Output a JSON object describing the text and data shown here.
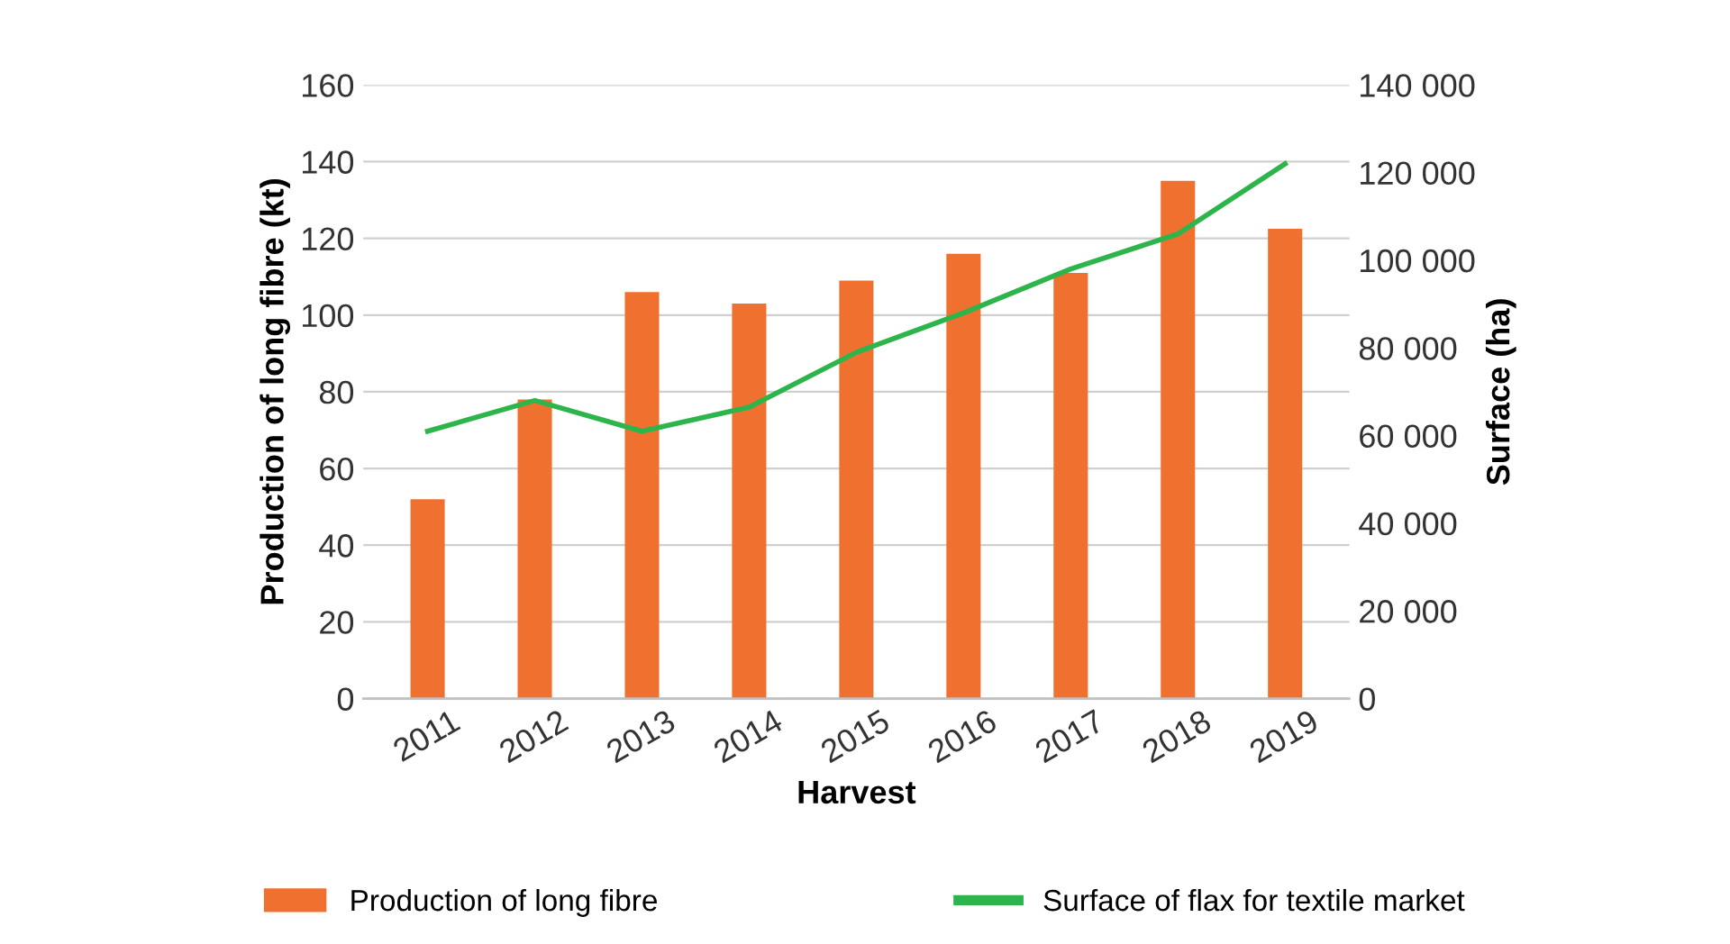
{
  "chart_data": {
    "type": "bar",
    "xlabel": "Harvest",
    "ylabel": "Production of long fibre (kt)",
    "y2label": "Surface (ha)",
    "categories": [
      "2011",
      "2012",
      "2013",
      "2014",
      "2015",
      "2016",
      "2017",
      "2018",
      "2019"
    ],
    "series": [
      {
        "name": "Production of long fibre",
        "color": "#f07030",
        "values": [
          52,
          78,
          106,
          103,
          109,
          116,
          111,
          135,
          122.5
        ]
      },
      {
        "name": "Surface of flax for textile market",
        "type": "line",
        "axis": "y2",
        "color": "#2db44a",
        "values": [
          61000,
          68000,
          61000,
          66500,
          79000,
          88000,
          98000,
          106000,
          122000
        ]
      }
    ],
    "ylim": [
      0,
      160
    ],
    "yticks": [
      0,
      20,
      40,
      60,
      80,
      100,
      120,
      140,
      160
    ],
    "y2lim": [
      0,
      140000
    ],
    "y2ticks": [
      {
        "value": 0,
        "label": "0"
      },
      {
        "value": 20000,
        "label": "20 000"
      },
      {
        "value": 40000,
        "label": "40 000"
      },
      {
        "value": 60000,
        "label": "60 000"
      },
      {
        "value": 80000,
        "label": "80 000"
      },
      {
        "value": 100000,
        "label": "100 000"
      },
      {
        "value": 120000,
        "label": "120 000"
      },
      {
        "value": 140000,
        "label": "140 000"
      }
    ],
    "grid": "y",
    "legend": "bottom",
    "marker": "none"
  }
}
